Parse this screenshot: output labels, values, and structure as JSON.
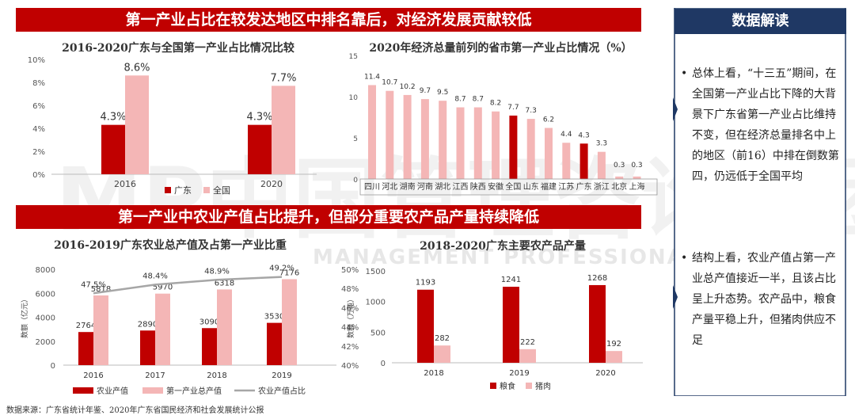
{
  "banners": {
    "top": "第一产业占比在较发达地区中排名靠后，对经济发展贡献较低",
    "middle": "第一产业中农业产值占比提升，但部分重要农产品产量持续降低"
  },
  "panel": {
    "title": "数据解读",
    "bullet1": "总体上看，“十三五”期间，在全国第一产业占比下降的大背景下广东省第一产业占比维持不变，但在经济总量排名中上的地区（前16）中排在倒数第四，仍远低于全国平均",
    "bullet2": "结构上看，农业产值占第一产业总产值接近一半，且该占比呈上升态势。农产品中，粮食产量平稳上升，但猪肉供应不足"
  },
  "watermark": {
    "line1": "MP中国管理咨询集团",
    "line2": "MANAGEMENT PROFESSIONAL"
  },
  "footnote": "数据来源：广东省统计年鉴、2020年广东省国民经济和社会发展统计公报",
  "colors": {
    "dark_red": "#c00000",
    "pink": "#f4b6b6",
    "navy": "#1f3864",
    "gray_line": "#a6a6a6"
  },
  "chart_data": [
    {
      "type": "bar",
      "title": "2016-2020广东与全国第一产业占比情况比较",
      "categories": [
        "2016",
        "2020"
      ],
      "series": [
        {
          "name": "广东",
          "values": [
            4.3,
            4.3
          ],
          "labels": [
            "4.3%",
            "4.3%"
          ]
        },
        {
          "name": "全国",
          "values": [
            8.6,
            7.7
          ],
          "labels": [
            "8.6%",
            "7.7%"
          ]
        }
      ],
      "ylim": [
        0,
        10
      ],
      "y_ticks": [
        "0%",
        "2%",
        "4%",
        "6%",
        "8%",
        "10%"
      ],
      "legend": "bottom"
    },
    {
      "type": "bar",
      "title": "2020年经济总量前列的省市第一产业占比情况（%）",
      "categories": [
        "四川",
        "河北",
        "湖南",
        "河南",
        "湖北",
        "江西",
        "陕西",
        "安徽",
        "全国",
        "山东",
        "福建",
        "江苏",
        "广东",
        "浙江",
        "北京",
        "上海"
      ],
      "values": [
        11.4,
        10.7,
        10.2,
        9.7,
        9.5,
        8.7,
        8.7,
        8.2,
        7.7,
        7.3,
        6.2,
        4.4,
        4.3,
        3.3,
        0.3,
        0.3
      ],
      "value_labels": [
        "11.4",
        "10.7",
        "10.2",
        "9.7",
        "9.5",
        "8.7",
        "8.7",
        "8.2",
        "7.7",
        "7.3",
        "6.2",
        "4.4",
        "4.3",
        "3.3",
        "0.3",
        "0.3"
      ],
      "highlighted": [
        "全国",
        "广东"
      ],
      "ylim": [
        0,
        15
      ],
      "y_ticks": [
        "0",
        "5",
        "10",
        "15"
      ]
    },
    {
      "type": "bar",
      "title": "2016-2019广东农业总产值及占第一产业比重",
      "categories": [
        "2016",
        "2017",
        "2018",
        "2019"
      ],
      "series": [
        {
          "name": "农业产值",
          "values": [
            2764,
            2890,
            3090,
            3530
          ]
        },
        {
          "name": "第一产业总产值",
          "values": [
            5818,
            5970,
            6318,
            7176
          ]
        },
        {
          "name": "农业产值占比",
          "values": [
            47.5,
            48.4,
            48.9,
            49.2
          ],
          "labels": [
            "47.5%",
            "48.4%",
            "48.9%",
            "49.2%"
          ],
          "axis": "right"
        }
      ],
      "ylabel": "数额（亿元）",
      "ylim": [
        0,
        8000
      ],
      "y_ticks": [
        "0",
        "2000",
        "4000",
        "6000",
        "8000"
      ],
      "y2lim": [
        40,
        50
      ],
      "y2_ticks": [
        "40%",
        "42%",
        "44%",
        "46%",
        "48%",
        "50%"
      ],
      "legend": "bottom"
    },
    {
      "type": "bar",
      "title": "2018-2020广东主要农产品产量",
      "categories": [
        "2018",
        "2019",
        "2020"
      ],
      "series": [
        {
          "name": "粮食",
          "values": [
            1193,
            1241,
            1268
          ]
        },
        {
          "name": "猪肉",
          "values": [
            282,
            222,
            192
          ]
        }
      ],
      "ylabel": "数额（万吨）",
      "ylim": [
        0,
        1500
      ],
      "y_ticks": [
        "0",
        "500",
        "1000",
        "1500"
      ],
      "legend": "bottom"
    }
  ]
}
